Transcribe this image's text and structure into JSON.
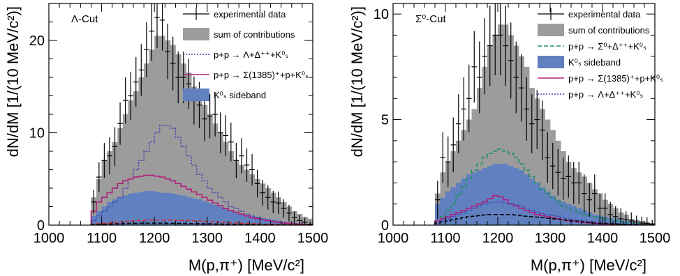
{
  "chart_data": [
    {
      "type": "histogram",
      "panel_label": "Λ-Cut",
      "xlabel": "M(p,π⁺) [MeV/c²]",
      "ylabel": "dN/dM [1/(10 MeV/c²)]",
      "xlim": [
        1000,
        1500
      ],
      "ylim": [
        0,
        24
      ],
      "x_ticks": [
        1000,
        1100,
        1200,
        1300,
        1400,
        1500
      ],
      "y_ticks": [
        0,
        10,
        20
      ],
      "bin_width": 10,
      "bin_start": 1080,
      "legend_position": "top-right",
      "legend": [
        {
          "label": "experimental data",
          "style": "errorbar"
        },
        {
          "label": "sum of contributions",
          "style": "fill",
          "color": "#9c9c9c"
        },
        {
          "label": "p+p → Λ+Δ⁺⁺+K⁰ₛ",
          "style": "dotted",
          "color": "#3b3bb0"
        },
        {
          "label": "p+p → Σ(1385)⁺+p+K⁰ₛ",
          "style": "solid",
          "color": "#b0207a"
        },
        {
          "label": "K⁰ₛ sideband",
          "style": "fill",
          "color": "#6080c0"
        }
      ],
      "series": {
        "sum": [
          3,
          5,
          7,
          8,
          9,
          10.5,
          12,
          13.5,
          14.5,
          16,
          17.5,
          19,
          20.5,
          20.5,
          20,
          19.5,
          18.5,
          17.5,
          16.5,
          15,
          14,
          13,
          12,
          11,
          10,
          9,
          8,
          7,
          6.5,
          6,
          5.5,
          5,
          4.5,
          4,
          3.5,
          3,
          2.5,
          2,
          1.5,
          1.2,
          0.9,
          0.7
        ],
        "lambda_delta": [
          0.5,
          1,
          1.5,
          2,
          2.5,
          3,
          4,
          5,
          6,
          7,
          8,
          9,
          10,
          10.8,
          10.8,
          10.5,
          9.5,
          8.5,
          7.5,
          6.5,
          5.5,
          4.8,
          4,
          3.5,
          3,
          2.5,
          2,
          1.8,
          1.5,
          1.2,
          1,
          0.8,
          0.6,
          0.5,
          0.4,
          0.3,
          0.2,
          0.15,
          0.1,
          0.08,
          0.05,
          0.03
        ],
        "sigma1385": [
          1.5,
          2.5,
          3,
          3.5,
          4,
          4.5,
          4.8,
          5,
          5.2,
          5.3,
          5.4,
          5.4,
          5.3,
          5.2,
          5,
          4.8,
          4.5,
          4.2,
          3.9,
          3.6,
          3.3,
          3,
          2.7,
          2.4,
          2.1,
          1.8,
          1.6,
          1.4,
          1.2,
          1,
          0.8,
          0.7,
          0.6,
          0.5,
          0.4,
          0.3,
          0.25,
          0.2,
          0.15,
          0.1,
          0.07,
          0.05
        ],
        "sideband": [
          1,
          1.5,
          2,
          2.5,
          2.8,
          3,
          3.2,
          3.4,
          3.5,
          3.6,
          3.7,
          3.7,
          3.6,
          3.5,
          3.5,
          3.4,
          3.3,
          3.2,
          3,
          2.9,
          2.8,
          2.6,
          2.4,
          2.2,
          2,
          1.8,
          1.6,
          1.4,
          1.2,
          1.1,
          1,
          0.9,
          0.8,
          0.7,
          0.6,
          0.5,
          0.4,
          0.3,
          0.25,
          0.2,
          0.15,
          0.1
        ],
        "dashed_red": [
          0.1,
          0.15,
          0.2,
          0.25,
          0.3,
          0.35,
          0.4,
          0.45,
          0.5,
          0.5,
          0.55,
          0.55,
          0.55,
          0.55,
          0.55,
          0.55,
          0.5,
          0.5,
          0.5,
          0.45,
          0.45,
          0.4,
          0.4,
          0.35,
          0.3,
          0.3,
          0.25,
          0.25,
          0.2,
          0.2,
          0.15,
          0.15,
          0.1,
          0.1,
          0.1,
          0.08,
          0.06,
          0.05,
          0.04,
          0.03,
          0.02,
          0.01
        ],
        "dashed_black": [
          0.05,
          0.08,
          0.1,
          0.12,
          0.14,
          0.16,
          0.18,
          0.2,
          0.2,
          0.22,
          0.22,
          0.22,
          0.22,
          0.22,
          0.2,
          0.2,
          0.2,
          0.18,
          0.18,
          0.16,
          0.16,
          0.14,
          0.14,
          0.12,
          0.12,
          0.1,
          0.1,
          0.08,
          0.08,
          0.07,
          0.06,
          0.05,
          0.05,
          0.04,
          0.04,
          0.03,
          0.03,
          0.02,
          0.02,
          0.01,
          0.01,
          0.01
        ],
        "data_x": [
          1085,
          1095,
          1105,
          1115,
          1125,
          1135,
          1145,
          1155,
          1165,
          1175,
          1185,
          1195,
          1205,
          1215,
          1225,
          1235,
          1245,
          1255,
          1265,
          1275,
          1285,
          1295,
          1305,
          1315,
          1325,
          1335,
          1345,
          1355,
          1365,
          1375,
          1385,
          1395,
          1405,
          1415,
          1425,
          1435,
          1445,
          1455,
          1465,
          1475,
          1485,
          1495
        ],
        "data_y": [
          2.5,
          5.2,
          7.0,
          7.5,
          8.5,
          11.0,
          13.5,
          14.0,
          15.5,
          16.8,
          19.0,
          21.0,
          22.5,
          22.2,
          18.8,
          17.5,
          16.0,
          16.0,
          15.3,
          13.5,
          13.0,
          11.5,
          11.8,
          12.0,
          10.0,
          9.7,
          9.0,
          7.0,
          7.5,
          6.5,
          6.0,
          4.5,
          3.5,
          3.0,
          2.5,
          2.4,
          1.8,
          1.3,
          0.8,
          0.5,
          0.3,
          0.1
        ],
        "data_err": [
          1.3,
          1.6,
          1.9,
          2.0,
          2.1,
          2.3,
          2.5,
          2.6,
          2.7,
          2.8,
          3.0,
          3.2,
          3.3,
          3.3,
          3.0,
          2.9,
          2.8,
          2.8,
          2.7,
          2.6,
          2.5,
          2.4,
          2.4,
          2.4,
          2.2,
          2.2,
          2.1,
          1.9,
          1.9,
          1.8,
          1.7,
          1.5,
          1.4,
          1.3,
          1.2,
          1.2,
          1.0,
          0.9,
          0.7,
          0.6,
          0.5,
          0.3
        ]
      }
    },
    {
      "type": "histogram",
      "panel_label": "Σ⁰-Cut",
      "xlabel": "M(p,π⁺) [MeV/c²]",
      "ylabel": "dN/dM [1/(10 MeV/c²)]",
      "xlim": [
        1000,
        1500
      ],
      "ylim": [
        0,
        10.5
      ],
      "x_ticks": [
        1000,
        1100,
        1200,
        1300,
        1400,
        1500
      ],
      "y_ticks": [
        0,
        5,
        10
      ],
      "bin_width": 10,
      "bin_start": 1080,
      "legend_position": "top-right",
      "legend": [
        {
          "label": "experimental data",
          "style": "errorbar"
        },
        {
          "label": "sum of contributions",
          "style": "fill",
          "color": "#9c9c9c"
        },
        {
          "label": "p+p → Σ⁰+Δ⁺⁺+K⁰ₛ",
          "style": "dashed",
          "color": "#209060"
        },
        {
          "label": "K⁰ₛ sideband",
          "style": "fill",
          "color": "#6080c0"
        },
        {
          "label": "p+p → Σ(1385)⁺+p+K⁰ₛ",
          "style": "solid",
          "color": "#b0207a"
        },
        {
          "label": "p+p → Λ+Δ⁺⁺+K⁰ₛ",
          "style": "dotted",
          "color": "#3b3bb0"
        }
      ],
      "series": {
        "sum": [
          1.5,
          2.5,
          3,
          3.5,
          4,
          4.5,
          5,
          5.5,
          6.5,
          7.5,
          8.5,
          9,
          9.5,
          9.5,
          9,
          8.5,
          8,
          7.5,
          6.5,
          6,
          5.5,
          5,
          4.5,
          4,
          3.5,
          3,
          2.7,
          2.5,
          2.3,
          2,
          1.7,
          1.5,
          1.2,
          1,
          0.8,
          0.6,
          0.5,
          0.3,
          0.25,
          0.2,
          0.15,
          0.1
        ],
        "sideband": [
          1,
          1.3,
          1.6,
          1.8,
          2,
          2.2,
          2.4,
          2.5,
          2.6,
          2.7,
          2.8,
          2.9,
          2.9,
          2.9,
          2.8,
          2.7,
          2.6,
          2.4,
          2.2,
          2,
          1.8,
          1.6,
          1.4,
          1.2,
          1.1,
          1,
          0.9,
          0.8,
          0.7,
          0.6,
          0.5,
          0.45,
          0.4,
          0.35,
          0.3,
          0.25,
          0.2,
          0.15,
          0.1,
          0.08,
          0.05,
          0.03
        ],
        "sigma0_delta": [
          0.2,
          0.4,
          0.7,
          1.0,
          1.4,
          1.8,
          2.2,
          2.6,
          2.9,
          3.2,
          3.4,
          3.5,
          3.6,
          3.5,
          3.4,
          3.2,
          2.9,
          2.6,
          2.3,
          2.0,
          1.7,
          1.5,
          1.3,
          1.1,
          0.9,
          0.8,
          0.7,
          0.6,
          0.5,
          0.45,
          0.4,
          0.35,
          0.3,
          0.25,
          0.2,
          0.15,
          0.12,
          0.1,
          0.08,
          0.05,
          0.03,
          0.02
        ],
        "sigma1385": [
          0.2,
          0.3,
          0.4,
          0.5,
          0.6,
          0.7,
          0.8,
          0.9,
          1.0,
          1.1,
          1.25,
          1.4,
          1.35,
          1.2,
          1.0,
          0.9,
          0.8,
          0.7,
          0.6,
          0.5,
          0.45,
          0.4,
          0.35,
          0.3,
          0.25,
          0.2,
          0.18,
          0.15,
          0.12,
          0.1,
          0.08,
          0.06,
          0.05,
          0.04,
          0.03,
          0.02,
          0.02,
          0.01,
          0.01,
          0.01,
          0.0,
          0.0
        ],
        "lambda_delta": [
          0.1,
          0.2,
          0.3,
          0.4,
          0.5,
          0.6,
          0.7,
          0.8,
          0.9,
          1.0,
          1.05,
          1.1,
          1.1,
          1.05,
          1.0,
          0.95,
          0.9,
          0.8,
          0.7,
          0.6,
          0.55,
          0.5,
          0.45,
          0.4,
          0.35,
          0.3,
          0.25,
          0.22,
          0.2,
          0.17,
          0.15,
          0.12,
          0.1,
          0.08,
          0.07,
          0.05,
          0.04,
          0.03,
          0.02,
          0.01,
          0.01,
          0.0
        ],
        "dashed_black": [
          0.1,
          0.15,
          0.2,
          0.25,
          0.3,
          0.35,
          0.4,
          0.42,
          0.45,
          0.48,
          0.5,
          0.5,
          0.5,
          0.5,
          0.5,
          0.48,
          0.45,
          0.42,
          0.4,
          0.38,
          0.35,
          0.32,
          0.3,
          0.28,
          0.25,
          0.22,
          0.2,
          0.18,
          0.15,
          0.12,
          0.1,
          0.08,
          0.07,
          0.06,
          0.05,
          0.04,
          0.03,
          0.02,
          0.02,
          0.01,
          0.01,
          0.0
        ],
        "data_x": [
          1085,
          1095,
          1105,
          1115,
          1125,
          1135,
          1145,
          1155,
          1165,
          1175,
          1185,
          1195,
          1205,
          1215,
          1225,
          1235,
          1245,
          1255,
          1265,
          1275,
          1285,
          1295,
          1305,
          1315,
          1325,
          1335,
          1345,
          1355,
          1365,
          1375,
          1385,
          1395,
          1405,
          1415,
          1425,
          1435,
          1445,
          1455,
          1465,
          1475,
          1485,
          1495
        ],
        "data_y": [
          1.2,
          3.2,
          3.0,
          3.8,
          4.8,
          5.5,
          6.0,
          7.5,
          7.0,
          8.0,
          8.5,
          9.0,
          9.0,
          8.5,
          7.8,
          7.0,
          6.5,
          5.5,
          4.8,
          5.0,
          4.5,
          3.2,
          2.8,
          2.5,
          2.2,
          2.3,
          2.0,
          2.0,
          1.5,
          1.2,
          1.5,
          0.8,
          0.8,
          0.5,
          0.4,
          0.3,
          0.25,
          0.2,
          0.15,
          0.1,
          0.08,
          0.05
        ],
        "data_err": [
          0.9,
          1.2,
          1.2,
          1.3,
          1.4,
          1.5,
          1.6,
          1.7,
          1.7,
          1.8,
          1.9,
          1.9,
          1.9,
          1.9,
          1.8,
          1.7,
          1.6,
          1.5,
          1.4,
          1.4,
          1.4,
          1.2,
          1.1,
          1.1,
          1.0,
          1.0,
          1.0,
          1.0,
          0.9,
          0.8,
          0.9,
          0.7,
          0.7,
          0.6,
          0.5,
          0.5,
          0.4,
          0.4,
          0.3,
          0.3,
          0.3,
          0.2
        ]
      }
    }
  ]
}
